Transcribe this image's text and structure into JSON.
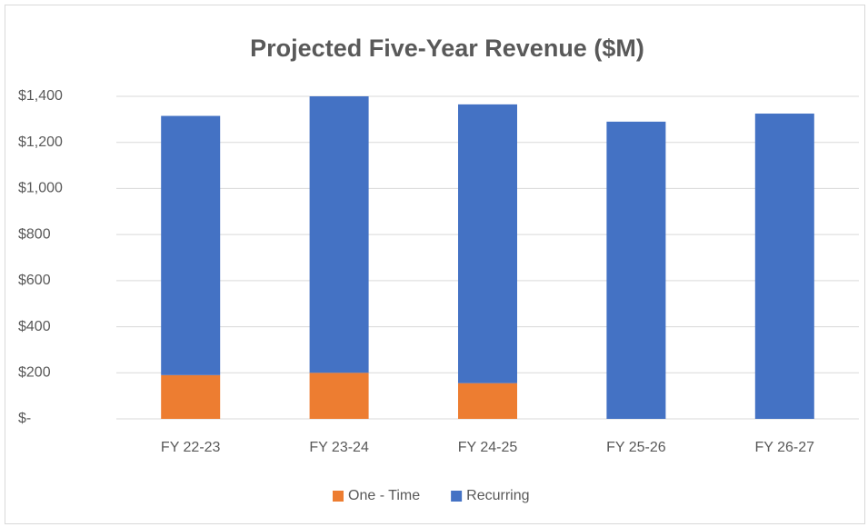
{
  "chart_data": {
    "type": "stacked_bar",
    "title": "Projected Five-Year Revenue ($M)",
    "categories": [
      "FY 22-23",
      "FY 23-24",
      "FY 24-25",
      "FY 25-26",
      "FY 26-27"
    ],
    "series": [
      {
        "name": "One - Time",
        "color": "#ed7d31",
        "values": [
          190,
          200,
          155,
          0,
          0
        ]
      },
      {
        "name": "Recurring",
        "color": "#4472c4",
        "values": [
          1125,
          1200,
          1210,
          1290,
          1325
        ]
      }
    ],
    "ylim": [
      0,
      1400
    ],
    "yticks": [
      {
        "value": 0,
        "label": "$-"
      },
      {
        "value": 200,
        "label": "$200"
      },
      {
        "value": 400,
        "label": "$400"
      },
      {
        "value": 600,
        "label": "$600"
      },
      {
        "value": 800,
        "label": "$800"
      },
      {
        "value": 1000,
        "label": "$1,000"
      },
      {
        "value": 1200,
        "label": "$1,200"
      },
      {
        "value": 1400,
        "label": "$1,400"
      }
    ],
    "grid": true,
    "legend": "bottom"
  }
}
